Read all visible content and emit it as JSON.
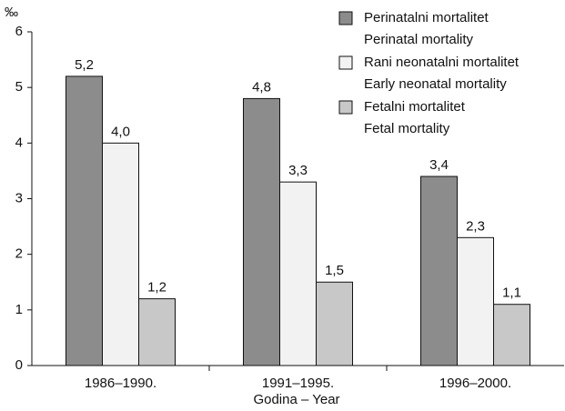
{
  "chart_data": {
    "type": "bar",
    "ylabel": "‰",
    "xlabel": "Godina – Year",
    "categories": [
      "1986–1990.",
      "1991–1995.",
      "1996–2000."
    ],
    "series": [
      {
        "name": [
          "Perinatalni mortalitet",
          "Perinatal mortality"
        ],
        "color": "#8c8c8c",
        "values": [
          5.2,
          4.8,
          3.4
        ],
        "value_labels": [
          "5,2",
          "4,8",
          "3,4"
        ]
      },
      {
        "name": [
          "Rani neonatalni mortalitet",
          "Early neonatal mortality"
        ],
        "color": "#f2f2f2",
        "values": [
          4.0,
          3.3,
          2.3
        ],
        "value_labels": [
          "4,0",
          "3,3",
          "2,3"
        ]
      },
      {
        "name": [
          "Fetalni mortalitet",
          "Fetal mortality"
        ],
        "color": "#c8c8c8",
        "values": [
          1.2,
          1.5,
          1.1
        ],
        "value_labels": [
          "1,2",
          "1,5",
          "1,1"
        ]
      }
    ],
    "ylim": [
      0,
      6
    ],
    "yticks": [
      0,
      1,
      2,
      3,
      4,
      5,
      6
    ],
    "grid": false,
    "legend": "upper right"
  }
}
